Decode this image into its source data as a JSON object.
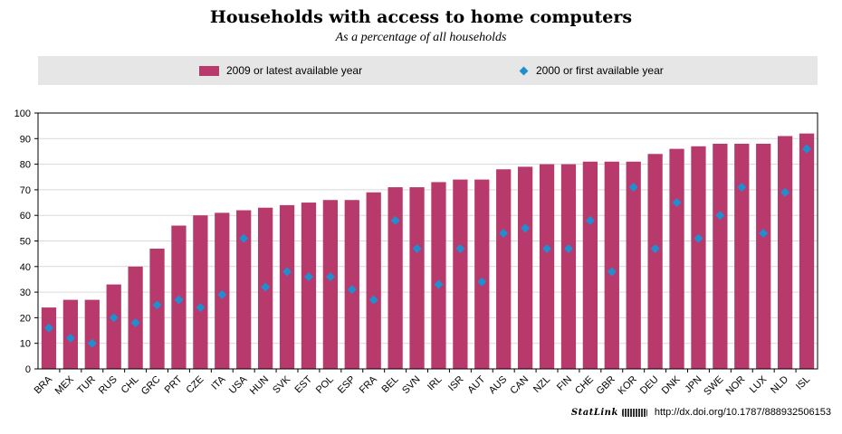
{
  "chart_data": {
    "type": "bar",
    "title": "Households with access to home computers",
    "subtitle": "As a percentage of all households",
    "categories": [
      "BRA",
      "MEX",
      "TUR",
      "RUS",
      "CHL",
      "GRC",
      "PRT",
      "CZE",
      "ITA",
      "USA",
      "HUN",
      "SVK",
      "EST",
      "POL",
      "ESP",
      "FRA",
      "BEL",
      "SVN",
      "IRL",
      "ISR",
      "AUT",
      "AUS",
      "CAN",
      "NZL",
      "FIN",
      "CHE",
      "GBR",
      "KOR",
      "DEU",
      "DNK",
      "JPN",
      "SWE",
      "NOR",
      "LUX",
      "NLD",
      "ISL"
    ],
    "series": [
      {
        "name": "2009 or latest available year",
        "marker": "bar",
        "color": "#b8396c",
        "values": [
          24,
          27,
          27,
          33,
          40,
          47,
          56,
          60,
          61,
          62,
          63,
          64,
          65,
          66,
          66,
          69,
          71,
          71,
          73,
          74,
          74,
          78,
          79,
          80,
          80,
          81,
          81,
          81,
          84,
          86,
          87,
          88,
          88,
          88,
          91,
          92
        ]
      },
      {
        "name": "2000 or first available year",
        "marker": "diamond",
        "color": "#1f8fd1",
        "values": [
          16,
          12,
          10,
          20,
          18,
          25,
          27,
          24,
          29,
          51,
          32,
          38,
          36,
          36,
          31,
          27,
          58,
          47,
          33,
          47,
          34,
          53,
          55,
          47,
          47,
          58,
          38,
          71,
          47,
          65,
          51,
          60,
          71,
          53,
          69,
          86
        ]
      }
    ],
    "ylim": [
      0,
      100
    ],
    "yticks": [
      "0",
      "10",
      "20",
      "30",
      "40",
      "50",
      "60",
      "70",
      "80",
      "90",
      "100"
    ],
    "grid": true,
    "legend_position": "top"
  },
  "footer": {
    "statlink_label": "StatLink",
    "url": "http://dx.doi.org/10.1787/888932506153"
  }
}
